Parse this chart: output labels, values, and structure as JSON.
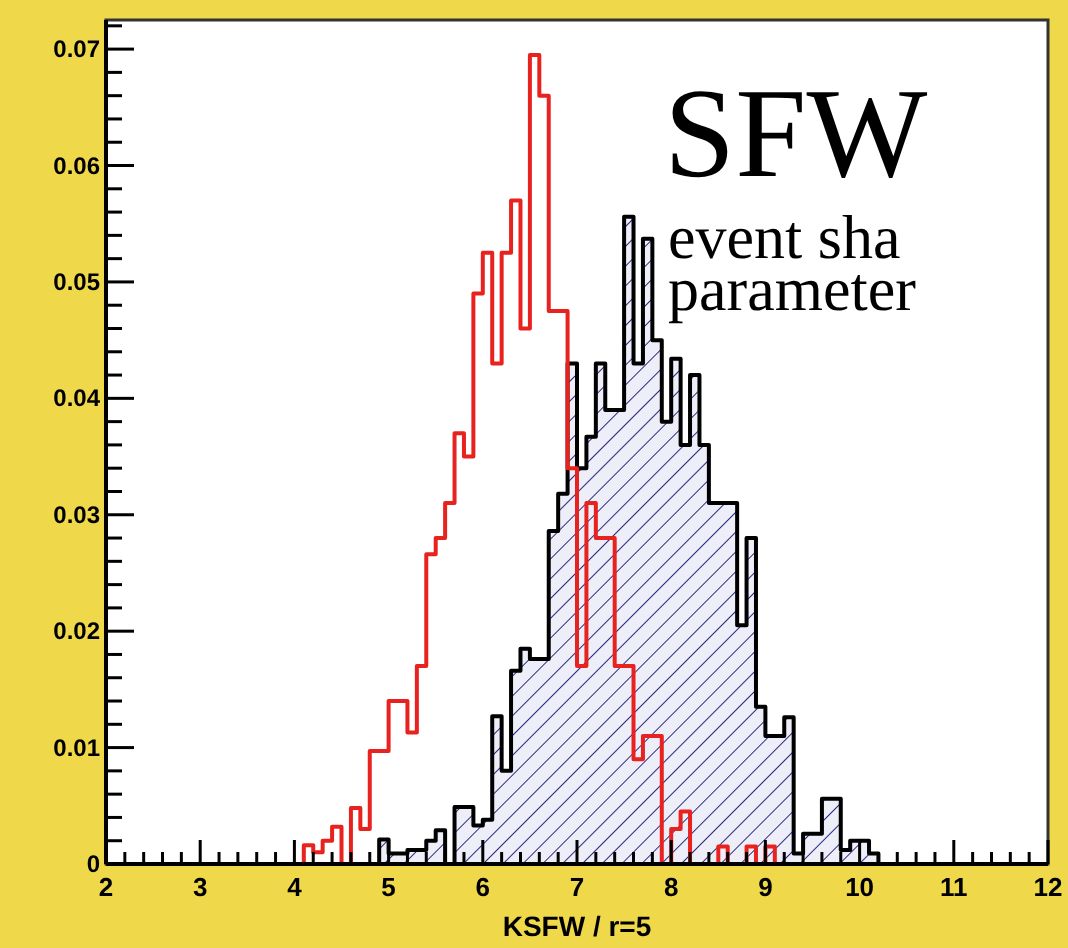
{
  "chart_data": {
    "type": "histogram",
    "xlabel": "KSFW / r=5",
    "annotations": [
      "SFW",
      "event sha",
      "parameter"
    ],
    "bins": [
      4.1,
      4.2,
      4.3,
      4.4,
      4.5,
      4.6,
      4.7,
      4.8,
      4.9,
      5.0,
      5.1,
      5.2,
      5.3,
      5.4,
      5.5,
      5.6,
      5.7,
      5.8,
      5.9,
      6.0,
      6.1,
      6.2,
      6.3,
      6.4,
      6.5,
      6.6,
      6.7,
      6.8,
      6.9,
      7.0,
      7.1,
      7.2,
      7.3,
      7.4,
      7.5,
      7.6,
      7.7,
      7.8,
      7.9,
      8.0,
      8.1,
      8.2,
      8.3,
      8.4,
      8.5,
      8.6,
      8.7,
      8.8,
      8.9,
      9.0,
      9.1,
      9.2,
      9.3,
      9.4,
      9.5,
      9.6,
      9.7,
      9.8,
      9.9,
      10.0,
      10.1,
      10.2
    ],
    "series": [
      {
        "color": "#000000",
        "values": [
          0,
          0,
          0,
          0,
          0,
          0,
          0,
          0,
          0.0021,
          0.0009,
          0.0009,
          0.0012,
          0.0012,
          0.002,
          0.0029,
          0,
          0.0049,
          0.0049,
          0.0033,
          0.0038,
          0.0127,
          0.008,
          0.0166,
          0.0185,
          0.0176,
          0.0176,
          0.0286,
          0.0318,
          0.043,
          0.034,
          0.0367,
          0.043,
          0.039,
          0.039,
          0.0556,
          0.043,
          0.0537,
          0.045,
          0.038,
          0.0434,
          0.036,
          0.042,
          0.036,
          0.031,
          0.031,
          0.031,
          0.0205,
          0.028,
          0.0135,
          0.011,
          0.011,
          0.0126,
          0.0009,
          0.0026,
          0.0026,
          0.0056,
          0.0056,
          0.0012,
          0.002,
          0.002,
          0.0009
        ]
      },
      {
        "color": "#e8231f",
        "values": [
          0.0016,
          0.001,
          0.002,
          0.0032,
          0,
          0.0048,
          0.003,
          0.0097,
          0.0097,
          0.014,
          0.014,
          0.0113,
          0.017,
          0.0266,
          0.028,
          0.031,
          0.037,
          0.035,
          0.049,
          0.0525,
          0.043,
          0.0525,
          0.057,
          0.046,
          0.0695,
          0.066,
          0.0475,
          0.0475,
          0.034,
          0.017,
          0.031,
          0.028,
          0.028,
          0.017,
          0.017,
          0.009,
          0.011,
          0.011,
          0,
          0.003,
          0.0045,
          0,
          0,
          0,
          0.0015,
          0,
          0,
          0.0015,
          0,
          0.0015,
          0,
          0,
          0,
          0,
          0,
          0,
          0,
          0,
          0,
          0,
          0
        ]
      }
    ],
    "xlim": [
      2,
      12
    ],
    "xticks": [
      2,
      {
        "value": 2.2,
        "label": null
      },
      {
        "value": 2.4,
        "label": null
      },
      {
        "value": 2.6,
        "label": null
      },
      {
        "value": 2.8,
        "label": null
      },
      3,
      {
        "value": 3.2,
        "label": null
      },
      {
        "value": 3.4,
        "label": null
      },
      {
        "value": 3.6,
        "label": null
      },
      {
        "value": 3.8,
        "label": null
      },
      4,
      {
        "value": 4.2,
        "label": null
      },
      {
        "value": 4.4,
        "label": null
      },
      {
        "value": 4.6,
        "label": null
      },
      {
        "value": 4.8,
        "label": null
      },
      5,
      {
        "value": 5.2,
        "label": null
      },
      {
        "value": 5.4,
        "label": null
      },
      {
        "value": 5.6,
        "label": null
      },
      {
        "value": 5.8,
        "label": null
      },
      6,
      {
        "value": 6.2,
        "label": null
      },
      {
        "value": 6.4,
        "label": null
      },
      {
        "value": 6.6,
        "label": null
      },
      {
        "value": 6.8,
        "label": null
      },
      7,
      {
        "value": 7.2,
        "label": null
      },
      {
        "value": 7.4,
        "label": null
      },
      {
        "value": 7.6,
        "label": null
      },
      {
        "value": 7.8,
        "label": null
      },
      8,
      {
        "value": 8.2,
        "label": null
      },
      {
        "value": 8.4,
        "label": null
      },
      {
        "value": 8.6,
        "label": null
      },
      {
        "value": 8.8,
        "label": null
      },
      9,
      {
        "value": 9.2,
        "label": null
      },
      {
        "value": 9.4,
        "label": null
      },
      {
        "value": 9.6,
        "label": null
      },
      {
        "value": 9.8,
        "label": null
      },
      10,
      {
        "value": 10.2,
        "label": null
      },
      {
        "value": 10.4,
        "label": null
      },
      {
        "value": 10.6,
        "label": null
      },
      {
        "value": 10.8,
        "label": null
      },
      11,
      {
        "value": 11.2,
        "label": null
      },
      {
        "value": 11.4,
        "label": null
      },
      {
        "value": 11.6,
        "label": null
      },
      {
        "value": 11.8,
        "label": null
      },
      12
    ],
    "ylim": [
      0,
      0.0725
    ],
    "yticks": [
      0,
      {
        "value": 0.002,
        "label": null
      },
      {
        "value": 0.004,
        "label": null
      },
      {
        "value": 0.006,
        "label": null
      },
      {
        "value": 0.008,
        "label": null
      },
      0.01,
      {
        "value": 0.012,
        "label": null
      },
      {
        "value": 0.014,
        "label": null
      },
      {
        "value": 0.016,
        "label": null
      },
      {
        "value": 0.018,
        "label": null
      },
      0.02,
      {
        "value": 0.022,
        "label": null
      },
      {
        "value": 0.024,
        "label": null
      },
      {
        "value": 0.026,
        "label": null
      },
      {
        "value": 0.028,
        "label": null
      },
      0.03,
      {
        "value": 0.032,
        "label": null
      },
      {
        "value": 0.034,
        "label": null
      },
      {
        "value": 0.036,
        "label": null
      },
      {
        "value": 0.038,
        "label": null
      },
      0.04,
      {
        "value": 0.042,
        "label": null
      },
      {
        "value": 0.044,
        "label": null
      },
      {
        "value": 0.046,
        "label": null
      },
      {
        "value": 0.048,
        "label": null
      },
      0.05,
      {
        "value": 0.052,
        "label": null
      },
      {
        "value": 0.054,
        "label": null
      },
      {
        "value": 0.056,
        "label": null
      },
      {
        "value": 0.058,
        "label": null
      },
      0.06,
      {
        "value": 0.062,
        "label": null
      },
      {
        "value": 0.064,
        "label": null
      },
      {
        "value": 0.066,
        "label": null
      },
      {
        "value": 0.068,
        "label": null
      },
      0.07,
      {
        "value": 0.072,
        "label": null
      }
    ]
  }
}
